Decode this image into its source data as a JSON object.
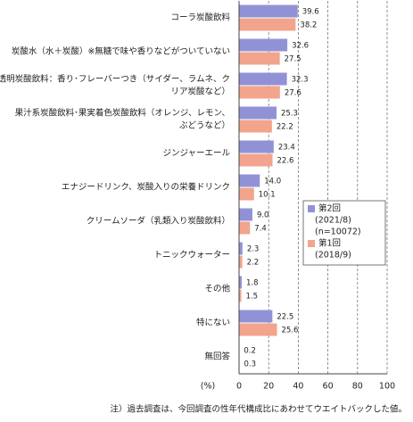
{
  "chart_data": {
    "type": "hbar",
    "categories": [
      [
        "コーラ炭酸飲料"
      ],
      [
        "炭酸水（水＋炭酸）※無糖で味や香りなどがついていない"
      ],
      [
        "透明炭酸飲料：香り･フレーバーつき（サイダー、ラムネ、ク",
        "リア炭酸など）"
      ],
      [
        "果汁系炭酸飲料･果実着色炭酸飲料（オレンジ、レモン、",
        "ぶどうなど）"
      ],
      [
        "ジンジャーエール"
      ],
      [
        "エナジードリンク、炭酸入りの栄養ドリンク"
      ],
      [
        "クリームソーダ（乳類入り炭酸飲料）"
      ],
      [
        "トニックウォーター"
      ],
      [
        "その他"
      ],
      [
        "特にない"
      ],
      [
        "無回答"
      ]
    ],
    "series": [
      {
        "name": "第2回",
        "details": [
          "(2021/8)",
          "(n=10072)"
        ],
        "color": "#9192d6",
        "values": [
          39.6,
          32.6,
          32.3,
          25.3,
          23.4,
          14.0,
          9.0,
          2.3,
          1.8,
          22.5,
          0.2
        ],
        "value_labels": [
          "39.6",
          "32.6",
          "32.3",
          "25.3",
          "23.4",
          "14.0",
          "9.0",
          "2.3",
          "1.8",
          "22.5",
          "0.2"
        ]
      },
      {
        "name": "第1回",
        "details": [
          "(2018/9)"
        ],
        "color": "#f2a48c",
        "values": [
          38.2,
          27.5,
          27.6,
          22.2,
          22.6,
          10.1,
          7.4,
          2.2,
          1.5,
          25.6,
          0.3
        ],
        "value_labels": [
          "38.2",
          "27.5",
          "27.6",
          "22.2",
          "22.6",
          "10.1",
          "7.4",
          "2.2",
          "1.5",
          "25.6",
          "0.3"
        ]
      }
    ],
    "x_label": "(%)",
    "xlim": [
      0,
      100
    ],
    "xticks": [
      0,
      20,
      40,
      60,
      80,
      100
    ],
    "grid": true,
    "note": "注）過去調査は、今回調査の性年代構成比にあわせてウエイトバックした値。"
  }
}
